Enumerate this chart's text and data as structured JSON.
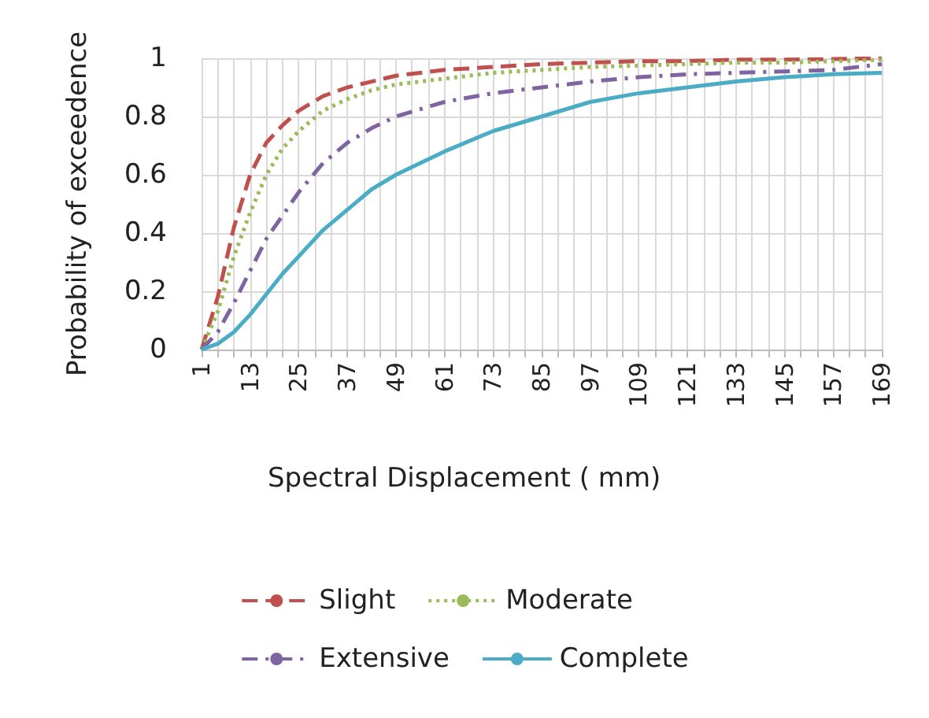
{
  "chart_data": {
    "type": "line",
    "xlabel": "Spectral Displacement ( mm)",
    "ylabel": "Probability of exceedence",
    "x": [
      1,
      5,
      9,
      13,
      17,
      21,
      25,
      31,
      37,
      43,
      49,
      61,
      73,
      85,
      97,
      109,
      121,
      133,
      145,
      157,
      169
    ],
    "xlim": [
      1,
      169
    ],
    "xticks": [
      1,
      {
        "value": 5,
        "label": null
      },
      {
        "value": 9,
        "label": null
      },
      13,
      {
        "value": 17,
        "label": null
      },
      {
        "value": 21,
        "label": null
      },
      25,
      {
        "value": 29,
        "label": null
      },
      {
        "value": 33,
        "label": null
      },
      37,
      {
        "value": 41,
        "label": null
      },
      {
        "value": 45,
        "label": null
      },
      49,
      {
        "value": 53,
        "label": null
      },
      {
        "value": 57,
        "label": null
      },
      61,
      {
        "value": 65,
        "label": null
      },
      {
        "value": 69,
        "label": null
      },
      73,
      {
        "value": 77,
        "label": null
      },
      {
        "value": 81,
        "label": null
      },
      85,
      {
        "value": 89,
        "label": null
      },
      {
        "value": 93,
        "label": null
      },
      97,
      {
        "value": 101,
        "label": null
      },
      {
        "value": 105,
        "label": null
      },
      109,
      {
        "value": 113,
        "label": null
      },
      {
        "value": 117,
        "label": null
      },
      121,
      {
        "value": 125,
        "label": null
      },
      {
        "value": 129,
        "label": null
      },
      133,
      {
        "value": 137,
        "label": null
      },
      {
        "value": 141,
        "label": null
      },
      145,
      {
        "value": 149,
        "label": null
      },
      {
        "value": 153,
        "label": null
      },
      157,
      {
        "value": 161,
        "label": null
      },
      {
        "value": 165,
        "label": null
      },
      169
    ],
    "ylim": [
      0,
      1
    ],
    "yticks": [
      0,
      0.2,
      0.4,
      0.6,
      0.8,
      1
    ],
    "grid": true,
    "legend": "bottom",
    "marker": "none",
    "series": [
      {
        "name": "Slight",
        "color": "#c0504d",
        "line_style": "dashed",
        "values": [
          0,
          0.18,
          0.42,
          0.6,
          0.71,
          0.77,
          0.82,
          0.87,
          0.9,
          0.92,
          0.94,
          0.96,
          0.97,
          0.98,
          0.985,
          0.99,
          0.99,
          0.995,
          0.995,
          0.997,
          1
        ]
      },
      {
        "name": "Moderate",
        "color": "#9bbb59",
        "line_style": "dotted",
        "values": [
          0,
          0.13,
          0.32,
          0.47,
          0.6,
          0.69,
          0.75,
          0.82,
          0.86,
          0.89,
          0.91,
          0.93,
          0.95,
          0.96,
          0.97,
          0.975,
          0.98,
          0.985,
          0.985,
          0.99,
          0.995
        ]
      },
      {
        "name": "Extensive",
        "color": "#8064a2",
        "line_style": "dashdot",
        "values": [
          0,
          0.06,
          0.16,
          0.27,
          0.38,
          0.46,
          0.54,
          0.64,
          0.71,
          0.76,
          0.8,
          0.85,
          0.88,
          0.9,
          0.92,
          0.935,
          0.945,
          0.95,
          0.955,
          0.96,
          0.98
        ]
      },
      {
        "name": "Complete",
        "color": "#4bacc6",
        "line_style": "solid",
        "values": [
          0,
          0.02,
          0.06,
          0.12,
          0.19,
          0.26,
          0.32,
          0.41,
          0.48,
          0.55,
          0.6,
          0.68,
          0.75,
          0.8,
          0.85,
          0.88,
          0.9,
          0.92,
          0.935,
          0.945,
          0.95
        ]
      }
    ]
  }
}
